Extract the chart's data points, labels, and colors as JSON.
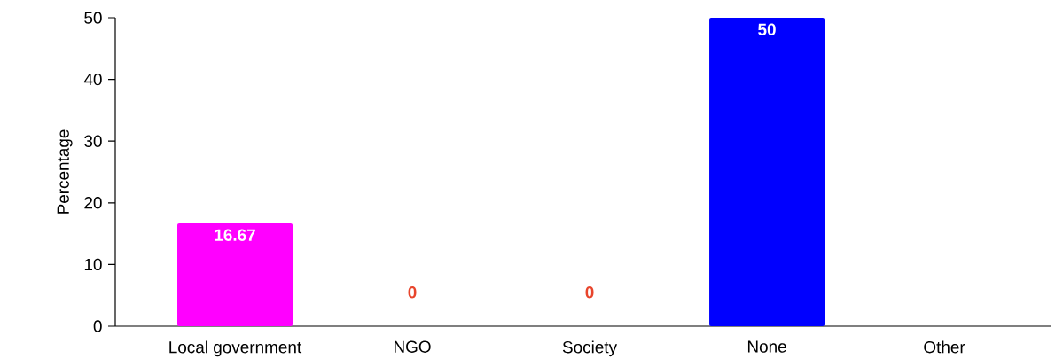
{
  "chart_data": {
    "type": "bar",
    "ylabel": "Percentage",
    "categories": [
      "Local government",
      "NGO",
      "Society",
      "None",
      "Other"
    ],
    "values": [
      16.67,
      0,
      0,
      50,
      null
    ],
    "colors": [
      "#ff00ff",
      "#e8452c",
      "#e8452c",
      "#0000ff",
      "#e8452c"
    ],
    "ylim": [
      0,
      50
    ],
    "yticks": [
      0,
      10,
      20,
      30,
      40,
      50
    ],
    "data_labels": true
  }
}
